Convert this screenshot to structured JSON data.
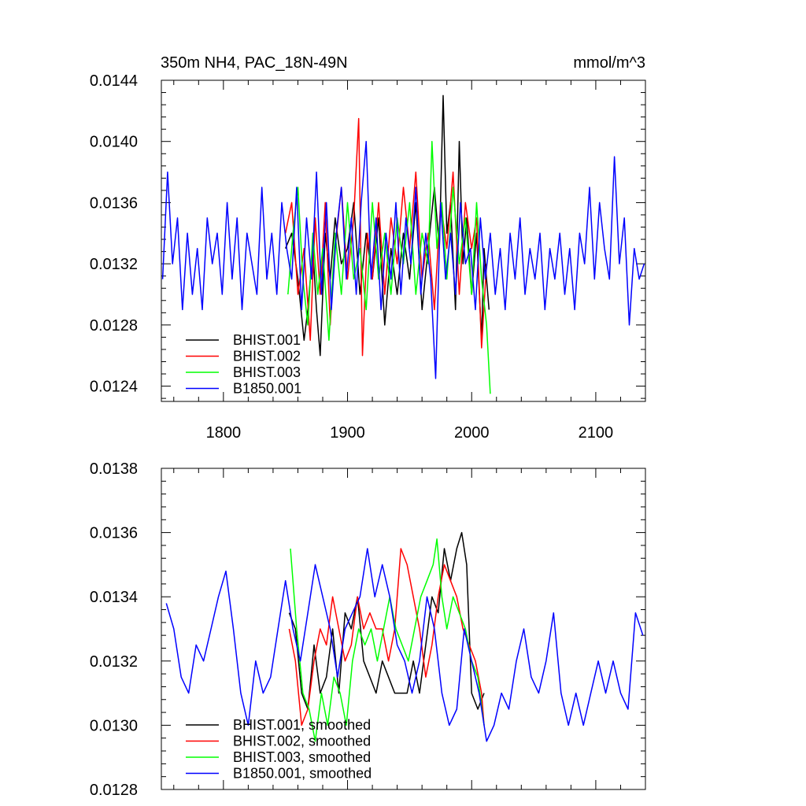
{
  "chart_data": [
    {
      "type": "line",
      "title": "350m NH4, PAC_18N-49N",
      "units": "mmol/m^3",
      "xlim": [
        1750,
        2140
      ],
      "ylim": [
        0.0123,
        0.0144
      ],
      "xticks": [
        1800,
        1900,
        2000,
        2100
      ],
      "xtick_labels": [
        "1800",
        "1900",
        "2000",
        "2100"
      ],
      "yticks": [
        0.0124,
        0.0128,
        0.0132,
        0.0136,
        0.014,
        0.0144
      ],
      "ytick_labels": [
        "0.0124",
        "0.0128",
        "0.0132",
        "0.0136",
        "0.0140",
        "0.0144"
      ],
      "legend_position": "bottom-left",
      "grid": false,
      "series": [
        {
          "name": "BHIST.001",
          "color": "#000000",
          "x": [
            1850,
            1855,
            1860,
            1865,
            1868,
            1872,
            1875,
            1878,
            1882,
            1886,
            1890,
            1895,
            1900,
            1905,
            1910,
            1915,
            1920,
            1925,
            1930,
            1935,
            1940,
            1945,
            1950,
            1955,
            1960,
            1965,
            1970,
            1974,
            1977,
            1980,
            1983,
            1987,
            1990,
            1993,
            1996,
            2000,
            2004,
            2008,
            2010,
            2014
          ],
          "values": [
            0.0133,
            0.0134,
            0.0131,
            0.0127,
            0.0129,
            0.0133,
            0.0129,
            0.0126,
            0.0134,
            0.0131,
            0.0135,
            0.0132,
            0.0133,
            0.0136,
            0.013,
            0.0134,
            0.0131,
            0.0135,
            0.0128,
            0.0133,
            0.013,
            0.0134,
            0.0131,
            0.0136,
            0.0129,
            0.0133,
            0.0137,
            0.0133,
            0.0143,
            0.0134,
            0.0136,
            0.0129,
            0.014,
            0.0132,
            0.0135,
            0.013,
            0.0134,
            0.0127,
            0.0133,
            0.0129
          ]
        },
        {
          "name": "BHIST.002",
          "color": "#ff0000",
          "x": [
            1850,
            1855,
            1860,
            1865,
            1870,
            1874,
            1878,
            1882,
            1886,
            1890,
            1895,
            1900,
            1905,
            1909,
            1912,
            1916,
            1920,
            1925,
            1930,
            1935,
            1940,
            1945,
            1950,
            1955,
            1960,
            1965,
            1970,
            1975,
            1980,
            1985,
            1990,
            1995,
            2000,
            2004,
            2008,
            2012
          ],
          "values": [
            0.0134,
            0.0136,
            0.013,
            0.0133,
            0.0127,
            0.0135,
            0.013,
            0.0136,
            0.0128,
            0.0133,
            0.0137,
            0.0131,
            0.0135,
            0.01415,
            0.0126,
            0.0134,
            0.0131,
            0.0136,
            0.013,
            0.0135,
            0.0132,
            0.0137,
            0.0133,
            0.0138,
            0.0131,
            0.0134,
            0.0129,
            0.0136,
            0.0133,
            0.0138,
            0.013,
            0.0136,
            0.0133,
            0.0135,
            0.01265,
            0.0132
          ]
        },
        {
          "name": "BHIST.003",
          "color": "#00ff00",
          "x": [
            1852,
            1856,
            1860,
            1864,
            1868,
            1872,
            1876,
            1880,
            1885,
            1890,
            1895,
            1900,
            1905,
            1910,
            1915,
            1920,
            1925,
            1930,
            1935,
            1940,
            1945,
            1950,
            1955,
            1960,
            1965,
            1968,
            1972,
            1976,
            1980,
            1985,
            1990,
            1995,
            2000,
            2004,
            2008,
            2012,
            2015
          ],
          "values": [
            0.013,
            0.0134,
            0.0137,
            0.0131,
            0.0128,
            0.0134,
            0.013,
            0.0133,
            0.0127,
            0.0134,
            0.013,
            0.0136,
            0.0131,
            0.0133,
            0.0129,
            0.0136,
            0.0131,
            0.0134,
            0.013,
            0.0135,
            0.0132,
            0.0136,
            0.013,
            0.0134,
            0.0132,
            0.014,
            0.0133,
            0.0136,
            0.0131,
            0.0137,
            0.0132,
            0.0135,
            0.013,
            0.0136,
            0.0131,
            0.0128,
            0.01235
          ]
        },
        {
          "name": "B1850.001",
          "color": "#0000ff",
          "x": [
            1751,
            1755,
            1759,
            1763,
            1767,
            1771,
            1775,
            1779,
            1783,
            1787,
            1791,
            1795,
            1799,
            1803,
            1807,
            1811,
            1815,
            1819,
            1823,
            1827,
            1831,
            1835,
            1839,
            1843,
            1847,
            1851,
            1855,
            1859,
            1863,
            1867,
            1871,
            1875,
            1879,
            1883,
            1887,
            1891,
            1895,
            1899,
            1903,
            1907,
            1911,
            1915,
            1919,
            1923,
            1927,
            1931,
            1935,
            1939,
            1943,
            1947,
            1951,
            1955,
            1959,
            1963,
            1967,
            1971,
            1975,
            1979,
            1983,
            1987,
            1991,
            1995,
            1999,
            2003,
            2007,
            2011,
            2015,
            2019,
            2023,
            2027,
            2031,
            2035,
            2039,
            2043,
            2047,
            2051,
            2055,
            2059,
            2063,
            2067,
            2071,
            2075,
            2079,
            2083,
            2087,
            2091,
            2095,
            2099,
            2103,
            2107,
            2111,
            2115,
            2119,
            2123,
            2127,
            2131,
            2135,
            2139
          ],
          "values": [
            0.0131,
            0.0138,
            0.0132,
            0.0135,
            0.0129,
            0.0134,
            0.013,
            0.0133,
            0.0129,
            0.0135,
            0.0132,
            0.0134,
            0.013,
            0.0136,
            0.0131,
            0.0135,
            0.0129,
            0.0134,
            0.0132,
            0.013,
            0.0137,
            0.0131,
            0.0134,
            0.013,
            0.0136,
            0.0133,
            0.0131,
            0.0137,
            0.0129,
            0.0135,
            0.0131,
            0.0138,
            0.013,
            0.0136,
            0.0129,
            0.0134,
            0.0137,
            0.0131,
            0.0135,
            0.013,
            0.0136,
            0.014,
            0.0131,
            0.0135,
            0.0129,
            0.0134,
            0.0131,
            0.0136,
            0.013,
            0.0135,
            0.0132,
            0.0137,
            0.013,
            0.0134,
            0.0131,
            0.01245,
            0.0136,
            0.0131,
            0.0134,
            0.013,
            0.0136,
            0.0132,
            0.0133,
            0.0129,
            0.0135,
            0.0131,
            0.0134,
            0.013,
            0.0133,
            0.0129,
            0.0134,
            0.0131,
            0.0135,
            0.013,
            0.0133,
            0.0131,
            0.0134,
            0.0129,
            0.0133,
            0.0131,
            0.0134,
            0.013,
            0.0133,
            0.0129,
            0.0134,
            0.0132,
            0.0137,
            0.0131,
            0.0136,
            0.0133,
            0.0131,
            0.0139,
            0.0132,
            0.0135,
            0.0128,
            0.0133,
            0.0131,
            0.0132
          ]
        }
      ]
    },
    {
      "type": "line",
      "title": "",
      "units": "",
      "xlim": [
        1750,
        2140
      ],
      "ylim": [
        0.0128,
        0.0138
      ],
      "xticks": [
        1800,
        1900,
        2000,
        2100
      ],
      "xtick_labels": [],
      "yticks": [
        0.0128,
        0.013,
        0.0132,
        0.0134,
        0.0136,
        0.0138
      ],
      "ytick_labels": [
        "0.0128",
        "0.0130",
        "0.0132",
        "0.0134",
        "0.0136",
        "0.0138"
      ],
      "legend_position": "bottom-left",
      "grid": false,
      "series": [
        {
          "name": "BHIST.001, smoothed",
          "color": "#000000",
          "x": [
            1853,
            1858,
            1863,
            1868,
            1873,
            1878,
            1883,
            1888,
            1893,
            1898,
            1903,
            1908,
            1913,
            1918,
            1923,
            1928,
            1933,
            1938,
            1943,
            1948,
            1953,
            1958,
            1963,
            1968,
            1973,
            1978,
            1983,
            1988,
            1992,
            1996,
            2000,
            2005,
            2010
          ],
          "values": [
            0.01335,
            0.0133,
            0.0131,
            0.01305,
            0.01325,
            0.0131,
            0.01315,
            0.0133,
            0.0131,
            0.01335,
            0.0133,
            0.0134,
            0.0132,
            0.01315,
            0.0131,
            0.0132,
            0.01315,
            0.0131,
            0.0131,
            0.0131,
            0.0132,
            0.0131,
            0.01325,
            0.0134,
            0.01335,
            0.01355,
            0.01345,
            0.01355,
            0.0136,
            0.0135,
            0.0131,
            0.01305,
            0.0131
          ]
        },
        {
          "name": "BHIST.002, smoothed",
          "color": "#ff0000",
          "x": [
            1853,
            1858,
            1863,
            1868,
            1873,
            1878,
            1883,
            1888,
            1893,
            1898,
            1903,
            1908,
            1913,
            1918,
            1923,
            1928,
            1933,
            1938,
            1943,
            1948,
            1953,
            1958,
            1963,
            1968,
            1973,
            1978,
            1983,
            1988,
            1993,
            1998,
            2003,
            2008,
            2010
          ],
          "values": [
            0.0133,
            0.0132,
            0.013,
            0.01305,
            0.0132,
            0.0133,
            0.01325,
            0.0134,
            0.0133,
            0.0132,
            0.01325,
            0.0134,
            0.0133,
            0.01335,
            0.0133,
            0.0133,
            0.0132,
            0.0133,
            0.01355,
            0.0135,
            0.0134,
            0.0133,
            0.01315,
            0.01325,
            0.0134,
            0.0135,
            0.01345,
            0.0134,
            0.0133,
            0.01325,
            0.0132,
            0.0131,
            0.013
          ]
        },
        {
          "name": "BHIST.003, smoothed",
          "color": "#00ff00",
          "x": [
            1854,
            1859,
            1864,
            1869,
            1874,
            1879,
            1884,
            1889,
            1894,
            1899,
            1904,
            1909,
            1914,
            1919,
            1924,
            1929,
            1934,
            1939,
            1944,
            1949,
            1954,
            1959,
            1964,
            1969,
            1972,
            1976,
            1980,
            1985,
            1990,
            1995,
            2000,
            2005,
            2010
          ],
          "values": [
            0.01355,
            0.0133,
            0.0131,
            0.01305,
            0.01295,
            0.0131,
            0.013,
            0.01315,
            0.0131,
            0.013,
            0.0132,
            0.0133,
            0.01325,
            0.0133,
            0.0132,
            0.0133,
            0.0134,
            0.0133,
            0.01325,
            0.0132,
            0.0133,
            0.0134,
            0.01345,
            0.0135,
            0.01358,
            0.0134,
            0.0133,
            0.0134,
            0.01335,
            0.0133,
            0.0132,
            0.01315,
            0.013
          ]
        },
        {
          "name": "B1850.001, smoothed",
          "color": "#0000ff",
          "x": [
            1754,
            1760,
            1766,
            1772,
            1778,
            1784,
            1790,
            1796,
            1802,
            1808,
            1814,
            1820,
            1826,
            1832,
            1838,
            1844,
            1850,
            1856,
            1862,
            1868,
            1874,
            1880,
            1886,
            1892,
            1898,
            1904,
            1910,
            1916,
            1922,
            1928,
            1934,
            1940,
            1946,
            1952,
            1958,
            1964,
            1970,
            1976,
            1982,
            1988,
            1994,
            2000,
            2006,
            2012,
            2018,
            2024,
            2030,
            2036,
            2042,
            2048,
            2054,
            2060,
            2066,
            2072,
            2078,
            2084,
            2090,
            2096,
            2102,
            2108,
            2114,
            2120,
            2126,
            2132,
            2138
          ],
          "values": [
            0.01338,
            0.0133,
            0.01315,
            0.0131,
            0.01325,
            0.0132,
            0.0133,
            0.0134,
            0.01348,
            0.0133,
            0.0131,
            0.013,
            0.0132,
            0.0131,
            0.01315,
            0.0133,
            0.01345,
            0.0133,
            0.0132,
            0.01335,
            0.0135,
            0.0134,
            0.0133,
            0.01315,
            0.0133,
            0.01335,
            0.0134,
            0.01355,
            0.0134,
            0.0135,
            0.0134,
            0.01325,
            0.0132,
            0.0131,
            0.0132,
            0.0134,
            0.0133,
            0.0131,
            0.013,
            0.01305,
            0.0133,
            0.0132,
            0.0131,
            0.01295,
            0.013,
            0.0131,
            0.01305,
            0.0132,
            0.0133,
            0.01315,
            0.0131,
            0.0132,
            0.01335,
            0.0131,
            0.013,
            0.0131,
            0.013,
            0.0131,
            0.0132,
            0.0131,
            0.0132,
            0.0131,
            0.01305,
            0.01335,
            0.01328
          ]
        }
      ]
    }
  ]
}
